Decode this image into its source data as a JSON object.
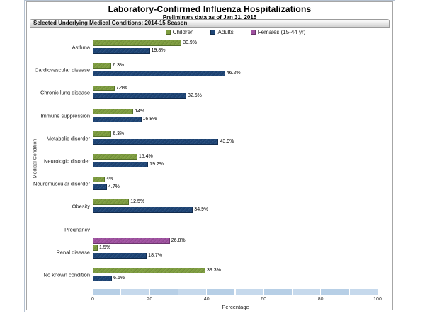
{
  "header": {
    "title": "Laboratory-Confirmed Influenza Hospitalizations",
    "subtitle": "Preliminary data as of Jan 31, 2015",
    "panel_label": "Selected Underlying Medical Conditions: 2014-15 Season"
  },
  "axes": {
    "xlabel": "Percentage",
    "ylabel": "Medical Condition",
    "xticks": [
      0,
      20,
      40,
      60,
      80,
      100
    ]
  },
  "scrollbar": {
    "color_a": "#b7cfe6",
    "color_b": "#c6d9ec"
  },
  "chart_data": {
    "type": "bar",
    "orientation": "horizontal",
    "title": "Laboratory-Confirmed Influenza Hospitalizations",
    "subtitle": "Preliminary data as of Jan 31, 2015",
    "xlabel": "Percentage",
    "ylabel": "Medical Condition",
    "xlim": [
      0,
      100
    ],
    "grid": false,
    "legend_position": "top",
    "categories": [
      "Asthma",
      "Cardiovascular disease",
      "Chronic lung disease",
      "Immune suppression",
      "Metabolic disorder",
      "Neurologic disorder",
      "Neuromuscular disorder",
      "Obesity",
      "Pregnancy",
      "Renal disease",
      "No known condition"
    ],
    "series": [
      {
        "name": "Children",
        "color": "#7e9d40",
        "edge_color": "#55702a",
        "values": [
          30.9,
          6.3,
          7.4,
          14,
          6.3,
          15.4,
          4,
          12.5,
          null,
          1.5,
          39.3
        ],
        "labels": [
          "30.9%",
          "6.3%",
          "7.4%",
          "14%",
          "6.3%",
          "15.4%",
          "4%",
          "12.5%",
          null,
          "1.5%",
          "39.3%"
        ]
      },
      {
        "name": "Adults",
        "color": "#1e4576",
        "edge_color": "#122c4e",
        "values": [
          19.8,
          46.2,
          32.6,
          16.8,
          43.9,
          19.2,
          4.7,
          34.9,
          null,
          18.7,
          6.5
        ],
        "labels": [
          "19.8%",
          "46.2%",
          "32.6%",
          "16.8%",
          "43.9%",
          "19.2%",
          "4.7%",
          "34.9%",
          null,
          "18.7%",
          "6.5%"
        ]
      },
      {
        "name": "Females (15-44 yr)",
        "color": "#9f51a0",
        "edge_color": "#6e3570",
        "values": [
          null,
          null,
          null,
          null,
          null,
          null,
          null,
          null,
          26.8,
          null,
          null
        ],
        "labels": [
          null,
          null,
          null,
          null,
          null,
          null,
          null,
          null,
          "26.8%",
          null,
          null
        ]
      }
    ]
  }
}
